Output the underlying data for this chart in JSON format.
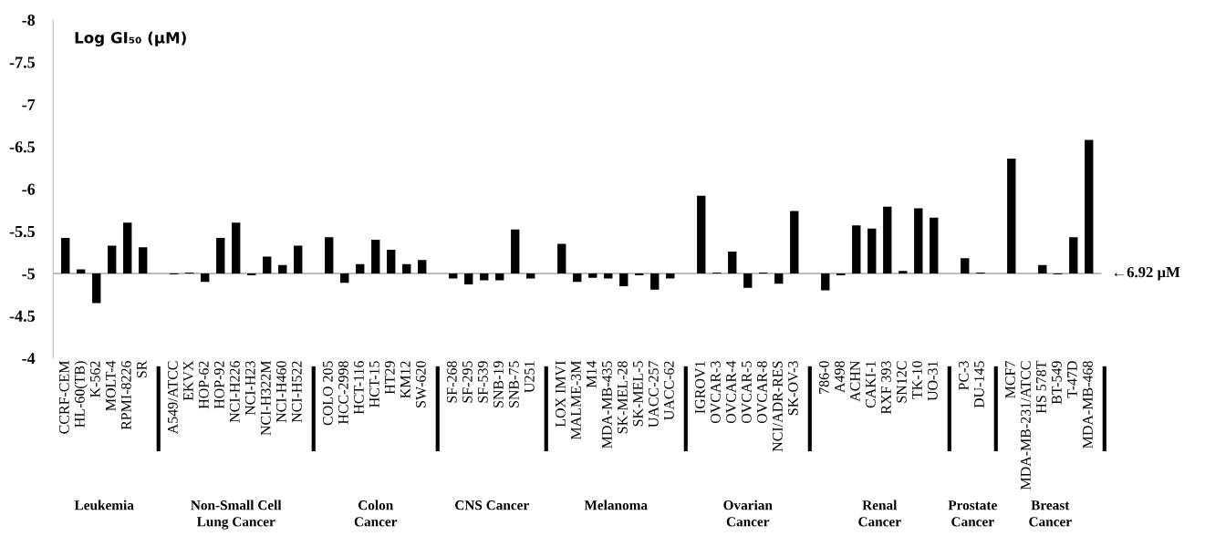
{
  "chart_data": {
    "type": "bar",
    "ylabel": "Log GI₅₀ (µM)",
    "categories": [
      "CCRF-CEM",
      "HL-60(TB)",
      "K-562",
      "MOLT-4",
      "RPMI-8226",
      "SR",
      null,
      "A549/ATCC",
      "EKVX",
      "HOP-62",
      "HOP-92",
      "NCI-H226",
      "NCI-H23",
      "NCI-H322M",
      "NCI-H460",
      "NCI-H522",
      null,
      "COLO 205",
      "HCC-2998",
      "HCT-116",
      "HCT-15",
      "HT29",
      "KM12",
      "SW-620",
      null,
      "SF-268",
      "SF-295",
      "SF-539",
      "SNB-19",
      "SNB-75",
      "U251",
      null,
      "LOX IMVI",
      "MALME-3M",
      "M14",
      "MDA-MB-435",
      "SK-MEL-28",
      "SK-MEL-5",
      "UACC-257",
      "UACC-62",
      null,
      "IGROV1",
      "OVCAR-3",
      "OVCAR-4",
      "OVCAR-5",
      "OVCAR-8",
      "NCI/ADR-RES",
      "SK-OV-3",
      null,
      "786-0",
      "A498",
      "ACHN",
      "CAKI-1",
      "RXF 393",
      "SN12C",
      "TK-10",
      "UO-31",
      null,
      "PC-3",
      "DU-145",
      null,
      "MCF7",
      "MDA-MB-231/ATCC",
      "HS 578T",
      "BT-549",
      "T-47D",
      "MDA-MB-468"
    ],
    "base": [
      -5,
      -5,
      -5,
      -5,
      -5,
      -5,
      null,
      -5,
      -5,
      -5,
      -5,
      -5,
      -5,
      -5,
      -5,
      -5,
      null,
      -5,
      -5,
      -5,
      -5,
      -5,
      -5,
      -5,
      null,
      -5,
      -5,
      -5,
      -5,
      -5,
      -5,
      null,
      -5,
      -5,
      -5,
      -5,
      -5,
      -5,
      -5,
      -5,
      null,
      -5,
      -5,
      -5,
      -5,
      -5,
      -5,
      -5,
      null,
      -5,
      -5,
      -5,
      -5,
      -5,
      -5,
      -5,
      -5,
      null,
      -5,
      -5,
      null,
      -5,
      null,
      -5,
      -5,
      -5,
      -5
    ],
    "values": [
      -0.42,
      -0.05,
      0.35,
      -0.33,
      -0.6,
      -0.31,
      null,
      0.01,
      -0.01,
      0.1,
      -0.42,
      -0.6,
      0.02,
      -0.2,
      -0.1,
      -0.33,
      null,
      -0.43,
      0.11,
      -0.11,
      -0.4,
      -0.28,
      -0.11,
      -0.16,
      null,
      0.06,
      0.13,
      0.08,
      0.08,
      -0.52,
      0.06,
      null,
      -0.35,
      0.1,
      0.05,
      0.06,
      0.15,
      0.02,
      0.19,
      0.06,
      null,
      -0.92,
      -0.01,
      -0.26,
      0.17,
      -0.01,
      0.12,
      -0.74,
      null,
      0.2,
      0.02,
      -0.57,
      -0.53,
      -0.79,
      -0.03,
      -0.77,
      -0.66,
      null,
      -0.18,
      -0.01,
      null,
      -1.36,
      null,
      -0.1,
      0.01,
      -0.43,
      -1.58
    ],
    "color": "#000000",
    "ylim": [
      -4,
      -8
    ],
    "yticks": [
      -8,
      -7.5,
      -7,
      -6.5,
      -6,
      -5.5,
      -5,
      -4.5,
      -4
    ],
    "ref_lines": [
      {
        "axis": "y",
        "value": -5,
        "label": "←6.92 µM",
        "color": "#a6a6a6"
      }
    ],
    "annotations": [
      "Leukemia",
      "Non-Small Cell\nLung Cancer",
      "Colon\nCancer",
      "CNS Cancer",
      "Melanoma",
      "Ovarian\nCancer",
      "Renal\nCancer",
      "Prostate\nCancer",
      "Breast\nCancer"
    ],
    "grid": false,
    "legend": false
  }
}
